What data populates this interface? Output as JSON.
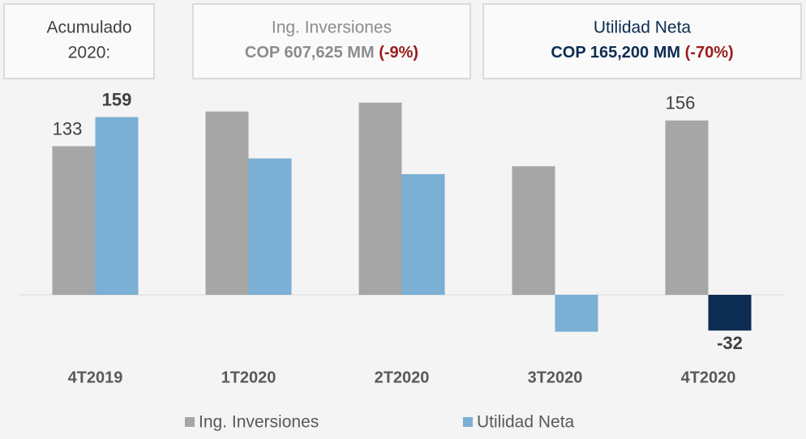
{
  "header": {
    "box1": {
      "line1": "Acumulado",
      "line2": "2020:"
    },
    "box2": {
      "title": "Ing. Inversiones",
      "amount": "COP 607,625 MM",
      "change": "(-9%)"
    },
    "box3": {
      "title": "Utilidad Neta",
      "amount": "COP 165,200 MM",
      "change": "(-70%)"
    }
  },
  "chart_data": {
    "type": "bar",
    "categories": [
      "4T2019",
      "1T2020",
      "2T2020",
      "3T2020",
      "4T2020"
    ],
    "series": [
      {
        "name": "Ing. Inversiones",
        "color": "#a6a6a6",
        "values": [
          133,
          164,
          172,
          115,
          156
        ],
        "labels": [
          true,
          false,
          false,
          false,
          true
        ],
        "label_bold": false
      },
      {
        "name": "Utilidad Neta",
        "color": "#7bafd4",
        "colors": [
          "#7bafd4",
          "#7bafd4",
          "#7bafd4",
          "#7bafd4",
          "#0d2d52"
        ],
        "values": [
          159,
          122,
          108,
          -33,
          -32
        ],
        "labels": [
          true,
          false,
          false,
          false,
          true
        ],
        "label_bold": true
      }
    ],
    "ylim": [
      -50,
      180
    ],
    "legend": "bottom"
  }
}
